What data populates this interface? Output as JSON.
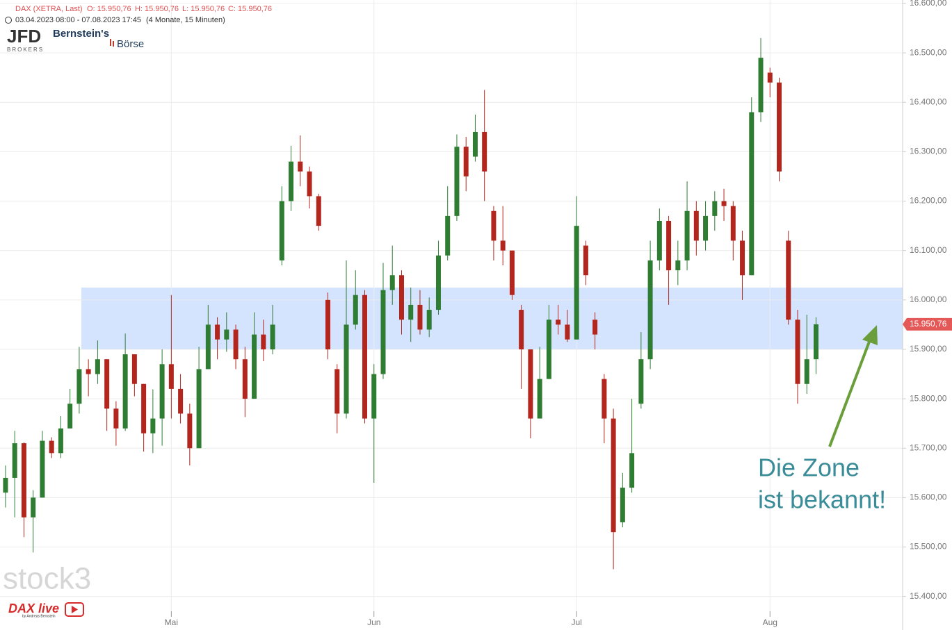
{
  "header": {
    "instrument": "DAX (XETRA, Last)",
    "ohlc": [
      "O: 15.950,76",
      "H: 15.950,76",
      "L: 15.950,76",
      "C: 15.950,76"
    ],
    "period": "03.04.2023 08:00 - 07.08.2023 17:45",
    "interval": "(4 Monate, 15 Minuten)"
  },
  "logos": {
    "jfd": "JFD",
    "brokers": "BROKERS",
    "bernstein": "Bernstein's",
    "boerse": "Börse",
    "stock3": "stock3",
    "daxlive": "DAX live",
    "byline": "by Andreas Bernstein"
  },
  "chart_data": {
    "type": "candlestick",
    "categories": [
      null,
      null,
      null,
      null,
      null,
      null,
      null,
      null,
      null,
      null,
      null,
      null,
      null,
      null,
      null,
      null,
      null,
      null,
      null,
      null,
      null,
      null,
      null,
      null,
      null,
      null,
      null,
      null,
      null,
      null,
      null,
      null,
      null,
      null,
      null,
      null,
      null,
      null,
      null,
      null,
      null,
      null,
      null,
      null,
      null,
      null,
      null,
      null,
      null,
      null,
      null,
      null,
      null,
      null,
      null,
      null,
      null,
      null,
      null,
      null,
      null,
      null,
      null,
      null,
      null,
      null,
      null,
      null,
      null,
      null,
      null,
      null,
      null,
      null,
      null,
      null,
      null,
      null,
      null,
      null,
      null,
      null,
      null,
      null,
      null,
      null,
      null,
      null,
      null
    ],
    "open": [
      15610,
      15640,
      15710,
      15560,
      15600,
      15715,
      15690,
      15740,
      15790,
      15860,
      15850,
      15880,
      15780,
      15740,
      15890,
      15830,
      15730,
      15760,
      15870,
      15820,
      15770,
      15700,
      15860,
      15950,
      15920,
      15940,
      15880,
      15800,
      15930,
      15900,
      16080,
      16200,
      16280,
      16260,
      16210,
      16000,
      15860,
      15770,
      15950,
      16010,
      15760,
      15850,
      16020,
      16050,
      15960,
      15990,
      15940,
      15980,
      16090,
      16170,
      16310,
      16290,
      16340,
      16180,
      16120,
      16100,
      15980,
      15900,
      15760,
      15840,
      15960,
      15950,
      15920,
      16110,
      15960,
      15840,
      15760,
      15550,
      15620,
      15790,
      15880,
      16080,
      16160,
      16060,
      16080,
      16180,
      16120,
      16170,
      16200,
      16190,
      16120,
      16050,
      16380,
      16460,
      16440,
      16120,
      15960,
      15830,
      15880
    ],
    "high": [
      15665,
      15735,
      15712,
      15615,
      15735,
      15722,
      15765,
      15820,
      15905,
      15880,
      15918,
      15880,
      15795,
      15932,
      15890,
      15830,
      15819,
      15900,
      16010,
      15850,
      15790,
      15905,
      15990,
      15965,
      15975,
      15950,
      15905,
      15975,
      15960,
      15990,
      16230,
      16312,
      16333,
      16270,
      16215,
      16015,
      15870,
      16080,
      16060,
      16020,
      15870,
      16075,
      16110,
      16060,
      16025,
      16020,
      16005,
      16120,
      16230,
      16335,
      16330,
      16375,
      16425,
      16190,
      16190,
      16100,
      15990,
      15900,
      15905,
      15990,
      15990,
      15980,
      16210,
      16120,
      15975,
      15850,
      15780,
      15650,
      15800,
      15935,
      16120,
      16185,
      16170,
      16120,
      16240,
      16200,
      16200,
      16220,
      16225,
      16200,
      16140,
      16410,
      16530,
      16470,
      16450,
      16140,
      15980,
      15970,
      15965
    ],
    "low": [
      15580,
      15560,
      15520,
      15489,
      15600,
      15680,
      15680,
      15740,
      15770,
      15805,
      15830,
      15735,
      15705,
      15735,
      15805,
      15693,
      15690,
      15705,
      15760,
      15750,
      15665,
      15700,
      15860,
      15880,
      15895,
      15860,
      15763,
      15800,
      15876,
      15890,
      16070,
      16180,
      16230,
      16185,
      16140,
      15880,
      15730,
      15760,
      15940,
      15750,
      15630,
      15840,
      15990,
      15930,
      15915,
      15930,
      15925,
      15970,
      16080,
      16160,
      16220,
      16280,
      16200,
      16080,
      16070,
      16000,
      15820,
      15720,
      15760,
      15840,
      15930,
      15915,
      15920,
      16030,
      15900,
      15710,
      15455,
      15540,
      15610,
      15780,
      15860,
      16060,
      15990,
      16030,
      16060,
      16090,
      16100,
      16140,
      16160,
      16080,
      16000,
      16050,
      16360,
      16410,
      16240,
      15950,
      15790,
      15810,
      15850
    ],
    "close": [
      15640,
      15710,
      15560,
      15600,
      15715,
      15690,
      15740,
      15790,
      15860,
      15850,
      15880,
      15780,
      15740,
      15890,
      15830,
      15730,
      15760,
      15870,
      15820,
      15770,
      15700,
      15860,
      15950,
      15920,
      15940,
      15880,
      15800,
      15930,
      15900,
      15950,
      16200,
      16280,
      16260,
      16210,
      16150,
      15900,
      15770,
      15950,
      16010,
      15760,
      15850,
      16020,
      16050,
      15960,
      15990,
      15940,
      15980,
      16090,
      16170,
      16310,
      16250,
      16340,
      16260,
      16120,
      16100,
      16010,
      15900,
      15760,
      15840,
      15960,
      15950,
      15920,
      16150,
      16050,
      15930,
      15760,
      15530,
      15620,
      15690,
      15880,
      16080,
      16160,
      16060,
      16080,
      16180,
      16120,
      16170,
      16200,
      16190,
      16120,
      16050,
      16380,
      16490,
      16440,
      16260,
      15960,
      15830,
      15880,
      15950.76
    ],
    "up_color": "#2e7d32",
    "down_color": "#b3261e",
    "xlim": [
      -0.6,
      97.4
    ],
    "xticks": [
      {
        "value": 18,
        "label": "Mai"
      },
      {
        "value": 40,
        "label": "Jun"
      },
      {
        "value": 62,
        "label": "Jul"
      },
      {
        "value": 83,
        "label": "Aug"
      }
    ],
    "ylim": [
      15370,
      16607
    ],
    "yticks": [
      {
        "value": 15400,
        "label": "15.400,00"
      },
      {
        "value": 15500,
        "label": "15.500,00"
      },
      {
        "value": 15600,
        "label": "15.600,00"
      },
      {
        "value": 15700,
        "label": "15.700,00"
      },
      {
        "value": 15800,
        "label": "15.800,00"
      },
      {
        "value": 15900,
        "label": "15.900,00"
      },
      {
        "value": 16000,
        "label": "16.000,00"
      },
      {
        "value": 16100,
        "label": "16.100,00"
      },
      {
        "value": 16200,
        "label": "16.200,00"
      },
      {
        "value": 16300,
        "label": "16.300,00"
      },
      {
        "value": 16400,
        "label": "16.400,00"
      },
      {
        "value": 16500,
        "label": "16.500,00"
      },
      {
        "value": 16600,
        "label": "16.600,00"
      }
    ],
    "grid": true,
    "zone": {
      "from": 15900,
      "to": 16025,
      "color": "#d4e4ff"
    },
    "last": {
      "value": 15950.76,
      "label": "15.950,76",
      "color": "#e45858"
    },
    "annotation": {
      "lines": [
        "Die Zone",
        "ist bekannt!"
      ],
      "color": "#3a8c99",
      "arrow_color": "#6a9e3a"
    }
  }
}
